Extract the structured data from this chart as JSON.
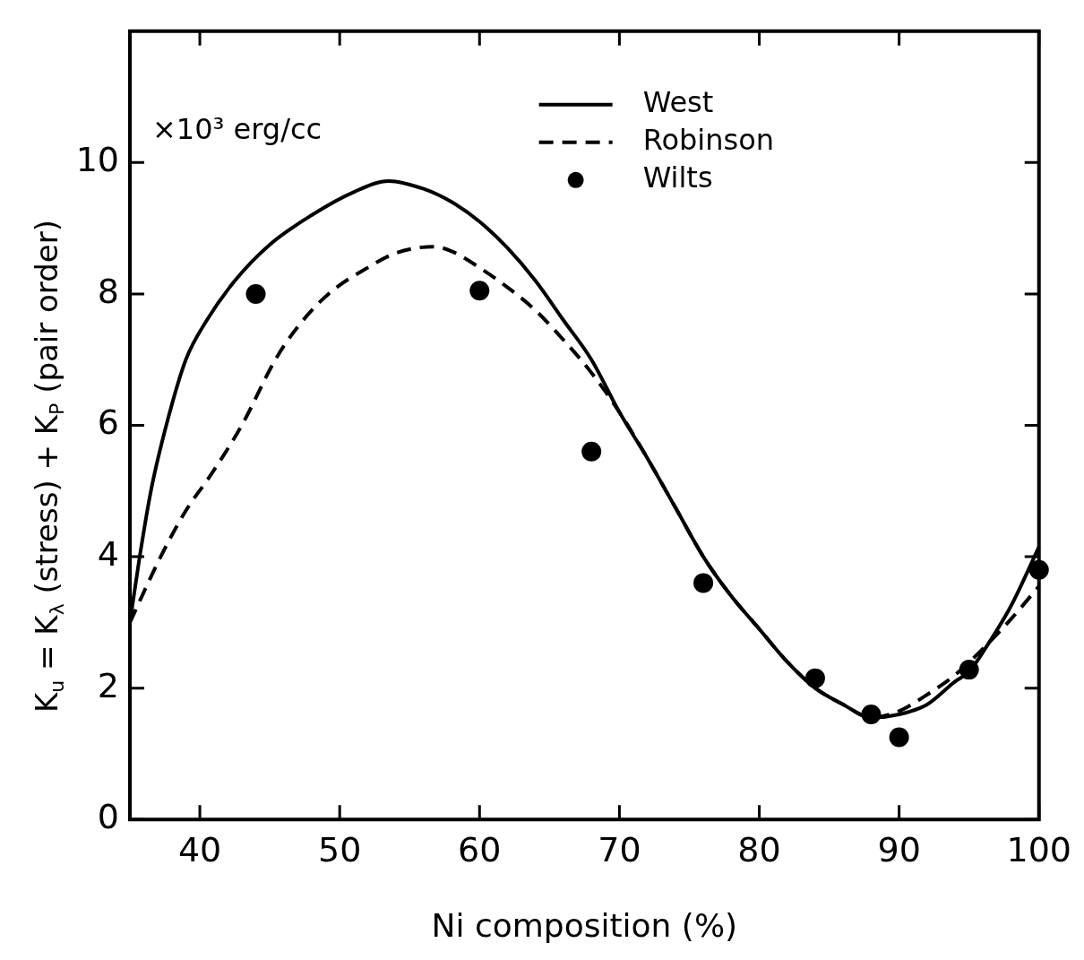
{
  "chart_data": {
    "type": "line",
    "xlabel": "Ni composition (%)",
    "ylabel": "K$_{u}$ = K$_{λ}$ (stress) + K$_{P}$ (pair order)",
    "annotations": [
      "×10³ erg/cc"
    ],
    "xlim": [
      35,
      100
    ],
    "xticks": [
      40,
      50,
      60,
      70,
      80,
      90,
      100
    ],
    "ylim": [
      0,
      12
    ],
    "yticks": [
      0,
      2,
      4,
      6,
      8,
      10
    ],
    "grid": false,
    "legend": "top",
    "series": [
      {
        "name": "West",
        "color": "#000000",
        "line_style": "solid",
        "marker": "none",
        "x": [
          35,
          35.7,
          36.5,
          37.6,
          39,
          40.5,
          42.5,
          45,
          48,
          51,
          53.5,
          56,
          58,
          60,
          62,
          64,
          66,
          68,
          70,
          72,
          74,
          76,
          78,
          80,
          82,
          84,
          86,
          88,
          90,
          92,
          94,
          95,
          96,
          98,
          100
        ],
        "values": [
          3.0,
          4.0,
          5.0,
          6.0,
          7.0,
          7.6,
          8.2,
          8.75,
          9.2,
          9.55,
          9.72,
          9.6,
          9.4,
          9.1,
          8.7,
          8.2,
          7.6,
          7.0,
          6.2,
          5.5,
          4.75,
          4.0,
          3.4,
          2.9,
          2.4,
          2.0,
          1.75,
          1.55,
          1.6,
          1.75,
          2.1,
          2.25,
          2.55,
          3.25,
          4.15
        ]
      },
      {
        "name": "Robinson",
        "color": "#000000",
        "line_style": "dashed",
        "marker": "none",
        "x": [
          35,
          37.2,
          39,
          40.8,
          43,
          45.4,
          47,
          49.2,
          52,
          54,
          56.7,
          58,
          60,
          62,
          64,
          66,
          68,
          70,
          72,
          74,
          76,
          78,
          80,
          82,
          84,
          86,
          88,
          90,
          92,
          94,
          96,
          98,
          100
        ],
        "values": [
          3.0,
          4.0,
          4.7,
          5.25,
          6.0,
          7.0,
          7.5,
          8.0,
          8.4,
          8.62,
          8.72,
          8.65,
          8.4,
          8.1,
          7.75,
          7.3,
          6.8,
          6.2,
          5.5,
          4.75,
          4.0,
          3.4,
          2.9,
          2.4,
          2.0,
          1.75,
          1.55,
          1.65,
          1.9,
          2.2,
          2.6,
          3.05,
          3.55
        ]
      },
      {
        "name": "Wilts",
        "type": "scatter",
        "color": "#000000",
        "marker": "circle",
        "x": [
          44,
          60,
          68,
          76,
          84,
          88,
          90,
          95,
          100
        ],
        "values": [
          8.0,
          8.05,
          5.6,
          3.6,
          2.15,
          1.6,
          1.25,
          2.28,
          3.8
        ]
      }
    ]
  }
}
